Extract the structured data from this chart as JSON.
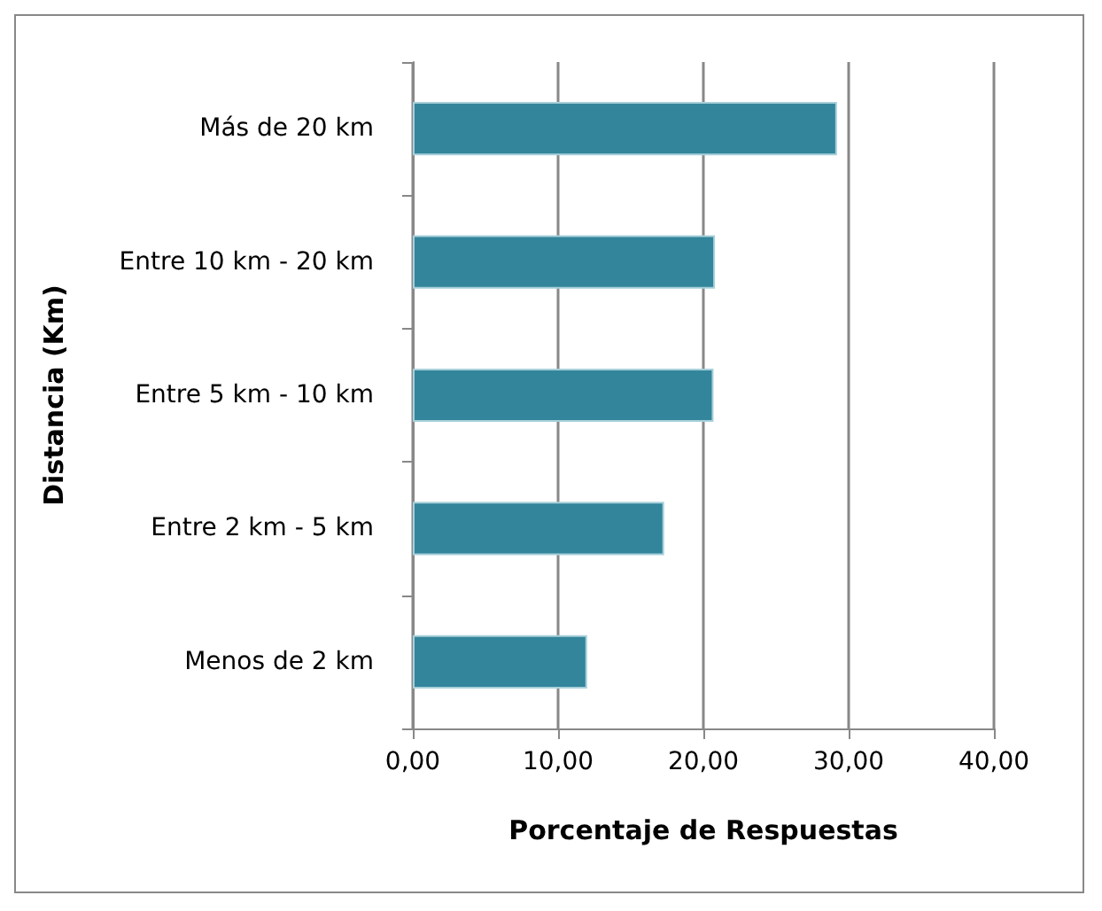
{
  "chart_data": {
    "type": "bar",
    "orientation": "horizontal",
    "xlabel": "Porcentaje de Respuestas",
    "ylabel": "Distancia (Km)",
    "categories": [
      "Más de 20 km",
      "Entre 10 km - 20 km",
      "Entre 5 km - 10 km",
      "Entre 2 km - 5 km",
      "Menos de 2 km"
    ],
    "values": [
      29.2,
      20.8,
      20.7,
      17.3,
      12.0
    ],
    "color": "#33859b",
    "xlim": [
      0,
      40
    ],
    "xticks": [
      {
        "value": 0,
        "label": "0,00"
      },
      {
        "value": 10,
        "label": "10,00"
      },
      {
        "value": 20,
        "label": "20,00"
      },
      {
        "value": 30,
        "label": "30,00"
      },
      {
        "value": 40,
        "label": "40,00"
      }
    ],
    "grid": "x"
  }
}
